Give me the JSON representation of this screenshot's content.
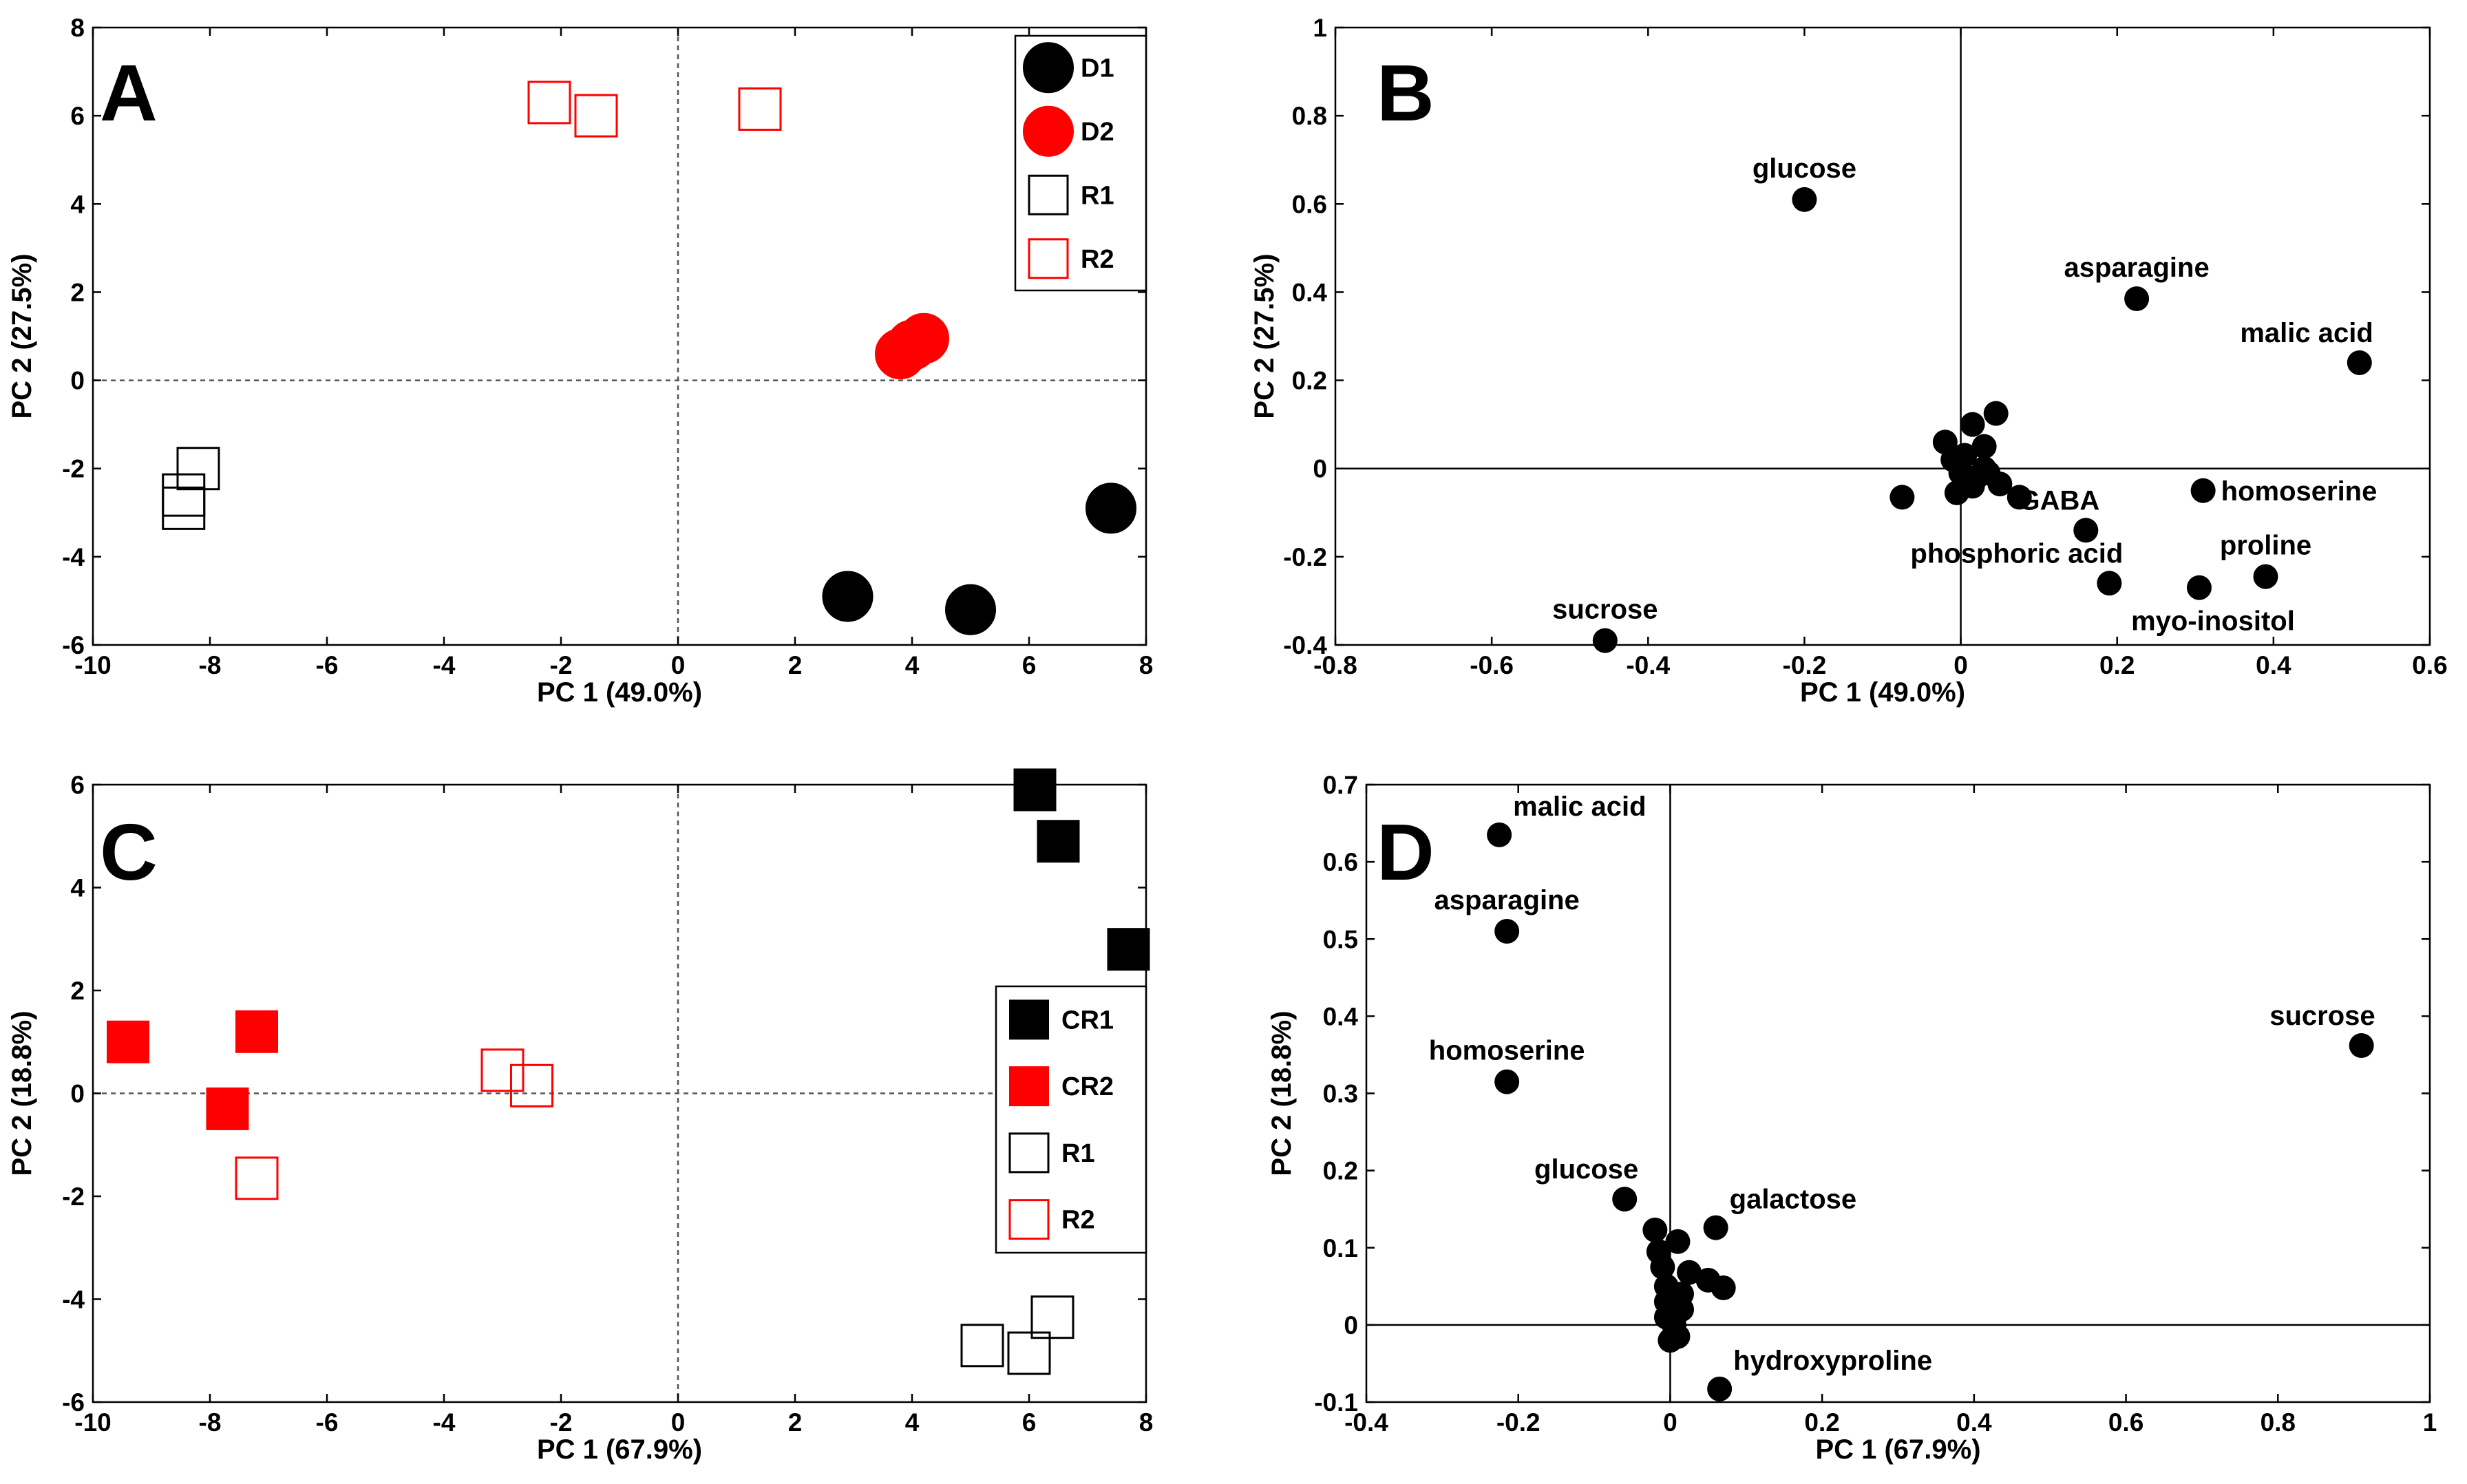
{
  "chart_data": [
    {
      "panel": "A",
      "type": "scatter",
      "xlabel": "PC 1 (49.0%)",
      "ylabel": "PC 2 (27.5%)",
      "xlim": [
        -10,
        8
      ],
      "ylim": [
        -6,
        8
      ],
      "xticks": [
        -10,
        -8,
        -6,
        -4,
        -2,
        0,
        2,
        4,
        6,
        8
      ],
      "yticks": [
        -6,
        -4,
        -2,
        0,
        2,
        4,
        6,
        8
      ],
      "zero_lines": "dashed",
      "legend_position": "top-right",
      "series": [
        {
          "name": "D1",
          "marker": "circle-filled",
          "color": "#000000",
          "points": [
            {
              "x": 2.9,
              "y": -4.9
            },
            {
              "x": 5.0,
              "y": -5.2
            },
            {
              "x": 7.4,
              "y": -2.9
            }
          ]
        },
        {
          "name": "D2",
          "marker": "circle-filled",
          "color": "#ff0000",
          "points": [
            {
              "x": 3.8,
              "y": 0.6
            },
            {
              "x": 4.0,
              "y": 0.8
            },
            {
              "x": 4.2,
              "y": 0.95
            }
          ]
        },
        {
          "name": "R1",
          "marker": "square-open",
          "color": "#000000",
          "points": [
            {
              "x": -8.2,
              "y": -2.0
            },
            {
              "x": -8.45,
              "y": -2.6
            },
            {
              "x": -8.45,
              "y": -2.9
            }
          ]
        },
        {
          "name": "R2",
          "marker": "square-open",
          "color": "#ff0000",
          "points": [
            {
              "x": -2.2,
              "y": 6.3
            },
            {
              "x": -1.4,
              "y": 6.0
            },
            {
              "x": 1.4,
              "y": 6.15
            }
          ]
        }
      ]
    },
    {
      "panel": "B",
      "type": "scatter",
      "xlabel": "PC 1 (49.0%)",
      "ylabel": "PC 2 (27.5%)",
      "xlim": [
        -0.8,
        0.6
      ],
      "ylim": [
        -0.4,
        1
      ],
      "xticks": [
        -0.8,
        -0.6,
        -0.4,
        -0.2,
        0,
        0.2,
        0.4,
        0.6
      ],
      "yticks": [
        -0.4,
        -0.2,
        0,
        0.2,
        0.4,
        0.6,
        0.8,
        1
      ],
      "zero_lines": "solid",
      "points": [
        {
          "x": -0.2,
          "y": 0.61,
          "label": "glucose",
          "label_side": "above"
        },
        {
          "x": 0.225,
          "y": 0.385,
          "label": "asparagine",
          "label_side": "above"
        },
        {
          "x": 0.51,
          "y": 0.24,
          "label": "malic acid",
          "label_side": "above-left"
        },
        {
          "x": 0.31,
          "y": -0.05,
          "label": "homoserine",
          "label_side": "right"
        },
        {
          "x": 0.16,
          "y": -0.14,
          "label": "GABA",
          "label_side": "above-left"
        },
        {
          "x": 0.19,
          "y": -0.26,
          "label": "phosphoric acid",
          "label_side": "above-left"
        },
        {
          "x": 0.39,
          "y": -0.245,
          "label": "proline",
          "label_side": "above"
        },
        {
          "x": 0.305,
          "y": -0.27,
          "label": "myo-inositol",
          "label_side": "below"
        },
        {
          "x": -0.455,
          "y": -0.39,
          "label": "sucrose",
          "label_side": "above"
        },
        {
          "x": -0.075,
          "y": -0.065
        },
        {
          "x": -0.02,
          "y": 0.06
        },
        {
          "x": 0.015,
          "y": 0.1
        },
        {
          "x": 0.045,
          "y": 0.125
        },
        {
          "x": 0.03,
          "y": 0.05
        },
        {
          "x": -0.01,
          "y": 0.02
        },
        {
          "x": 0.0,
          "y": -0.01
        },
        {
          "x": 0.02,
          "y": -0.02
        },
        {
          "x": 0.035,
          "y": -0.01
        },
        {
          "x": 0.05,
          "y": -0.035
        },
        {
          "x": 0.075,
          "y": -0.065
        },
        {
          "x": -0.005,
          "y": -0.055
        },
        {
          "x": 0.015,
          "y": -0.04
        },
        {
          "x": 0.03,
          "y": 0.0
        },
        {
          "x": 0.005,
          "y": 0.03
        }
      ]
    },
    {
      "panel": "C",
      "type": "scatter",
      "xlabel": "PC 1 (67.9%)",
      "ylabel": "PC 2 (18.8%)",
      "xlim": [
        -10,
        8
      ],
      "ylim": [
        -6,
        6
      ],
      "xticks": [
        -10,
        -8,
        -6,
        -4,
        -2,
        0,
        2,
        4,
        6,
        8
      ],
      "yticks": [
        -6,
        -4,
        -2,
        0,
        2,
        4,
        6
      ],
      "zero_lines": "dashed",
      "legend_position": "right",
      "series": [
        {
          "name": "CR1",
          "marker": "square-filled",
          "color": "#000000",
          "points": [
            {
              "x": 6.1,
              "y": 5.9
            },
            {
              "x": 6.5,
              "y": 4.9
            },
            {
              "x": 7.7,
              "y": 2.8
            }
          ]
        },
        {
          "name": "CR2",
          "marker": "square-filled",
          "color": "#ff0000",
          "points": [
            {
              "x": -9.4,
              "y": 1.0
            },
            {
              "x": -7.2,
              "y": 1.2
            },
            {
              "x": -7.7,
              "y": -0.3
            }
          ]
        },
        {
          "name": "R1",
          "marker": "square-open",
          "color": "#000000",
          "points": [
            {
              "x": 5.2,
              "y": -4.9
            },
            {
              "x": 6.0,
              "y": -5.05
            },
            {
              "x": 6.4,
              "y": -4.35
            }
          ]
        },
        {
          "name": "R2",
          "marker": "square-open",
          "color": "#ff0000",
          "points": [
            {
              "x": -3.0,
              "y": 0.45
            },
            {
              "x": -2.5,
              "y": 0.15
            },
            {
              "x": -7.2,
              "y": -1.65
            }
          ]
        }
      ]
    },
    {
      "panel": "D",
      "type": "scatter",
      "xlabel": "PC 1 (67.9%)",
      "ylabel": "PC 2 (18.8%)",
      "xlim": [
        -0.4,
        1
      ],
      "ylim": [
        -0.1,
        0.7
      ],
      "xticks": [
        -0.4,
        -0.2,
        0,
        0.2,
        0.4,
        0.6,
        0.8,
        1
      ],
      "yticks": [
        -0.1,
        0,
        0.1,
        0.2,
        0.3,
        0.4,
        0.5,
        0.6,
        0.7
      ],
      "zero_lines": "solid",
      "points": [
        {
          "x": -0.225,
          "y": 0.635,
          "label": "malic acid",
          "label_side": "above-right"
        },
        {
          "x": -0.215,
          "y": 0.51,
          "label": "asparagine",
          "label_side": "above"
        },
        {
          "x": -0.215,
          "y": 0.315,
          "label": "homoserine",
          "label_side": "above"
        },
        {
          "x": -0.06,
          "y": 0.163,
          "label": "glucose",
          "label_side": "above-left"
        },
        {
          "x": 0.06,
          "y": 0.126,
          "label": "galactose",
          "label_side": "above-right"
        },
        {
          "x": 0.065,
          "y": -0.083,
          "label": "hydroxyproline",
          "label_side": "above-right"
        },
        {
          "x": 0.91,
          "y": 0.362,
          "label": "sucrose",
          "label_side": "above-left"
        },
        {
          "x": -0.02,
          "y": 0.123
        },
        {
          "x": 0.01,
          "y": 0.108
        },
        {
          "x": -0.015,
          "y": 0.095
        },
        {
          "x": -0.01,
          "y": 0.075
        },
        {
          "x": 0.025,
          "y": 0.068
        },
        {
          "x": 0.05,
          "y": 0.058
        },
        {
          "x": 0.07,
          "y": 0.048
        },
        {
          "x": -0.005,
          "y": 0.05
        },
        {
          "x": 0.015,
          "y": 0.04
        },
        {
          "x": -0.005,
          "y": 0.03
        },
        {
          "x": 0.015,
          "y": 0.02
        },
        {
          "x": -0.005,
          "y": 0.01
        },
        {
          "x": 0.005,
          "y": 0.0
        },
        {
          "x": 0.01,
          "y": -0.015
        },
        {
          "x": 0.0,
          "y": -0.02
        }
      ]
    }
  ]
}
